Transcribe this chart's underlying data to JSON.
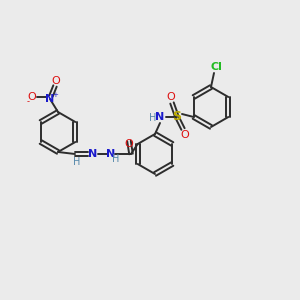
{
  "background_color": "#ebebeb",
  "bond_color": "#2d2d2d",
  "colors": {
    "N": "#1a1acc",
    "O": "#dd1111",
    "S": "#bbaa00",
    "Cl": "#22bb22",
    "H": "#5588aa",
    "C": "#2d2d2d"
  },
  "figsize": [
    3.0,
    3.0
  ],
  "dpi": 100
}
